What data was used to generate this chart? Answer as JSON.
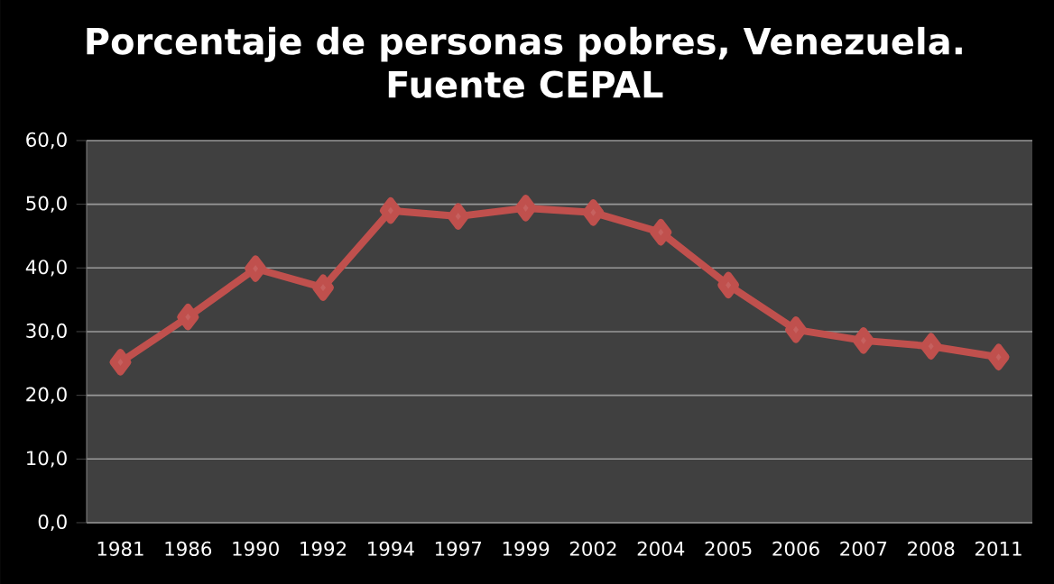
{
  "chart_data": {
    "type": "line",
    "title": "Porcentaje de personas pobres, Venezuela.",
    "subtitle": "Fuente CEPAL",
    "categories": [
      "1981",
      "1986",
      "1990",
      "1992",
      "1994",
      "1997",
      "1999",
      "2002",
      "2004",
      "2005",
      "2006",
      "2007",
      "2008",
      "2011"
    ],
    "series": [
      {
        "color": "#c0504d",
        "values": [
          25.2,
          32.3,
          39.9,
          36.9,
          49.0,
          48.1,
          49.4,
          48.7,
          45.6,
          37.3,
          30.3,
          28.6,
          27.7,
          26.0
        ]
      }
    ],
    "ylim": [
      0,
      60
    ],
    "yticks": [
      {
        "value": 0,
        "label": "0,0"
      },
      {
        "value": 10,
        "label": "10,0"
      },
      {
        "value": 20,
        "label": "20,0"
      },
      {
        "value": 30,
        "label": "30,0"
      },
      {
        "value": 40,
        "label": "40,0"
      },
      {
        "value": 50,
        "label": "50,0"
      },
      {
        "value": 60,
        "label": "60,0"
      }
    ],
    "grid": "y",
    "marker": "diamond",
    "line_style": "solid"
  }
}
